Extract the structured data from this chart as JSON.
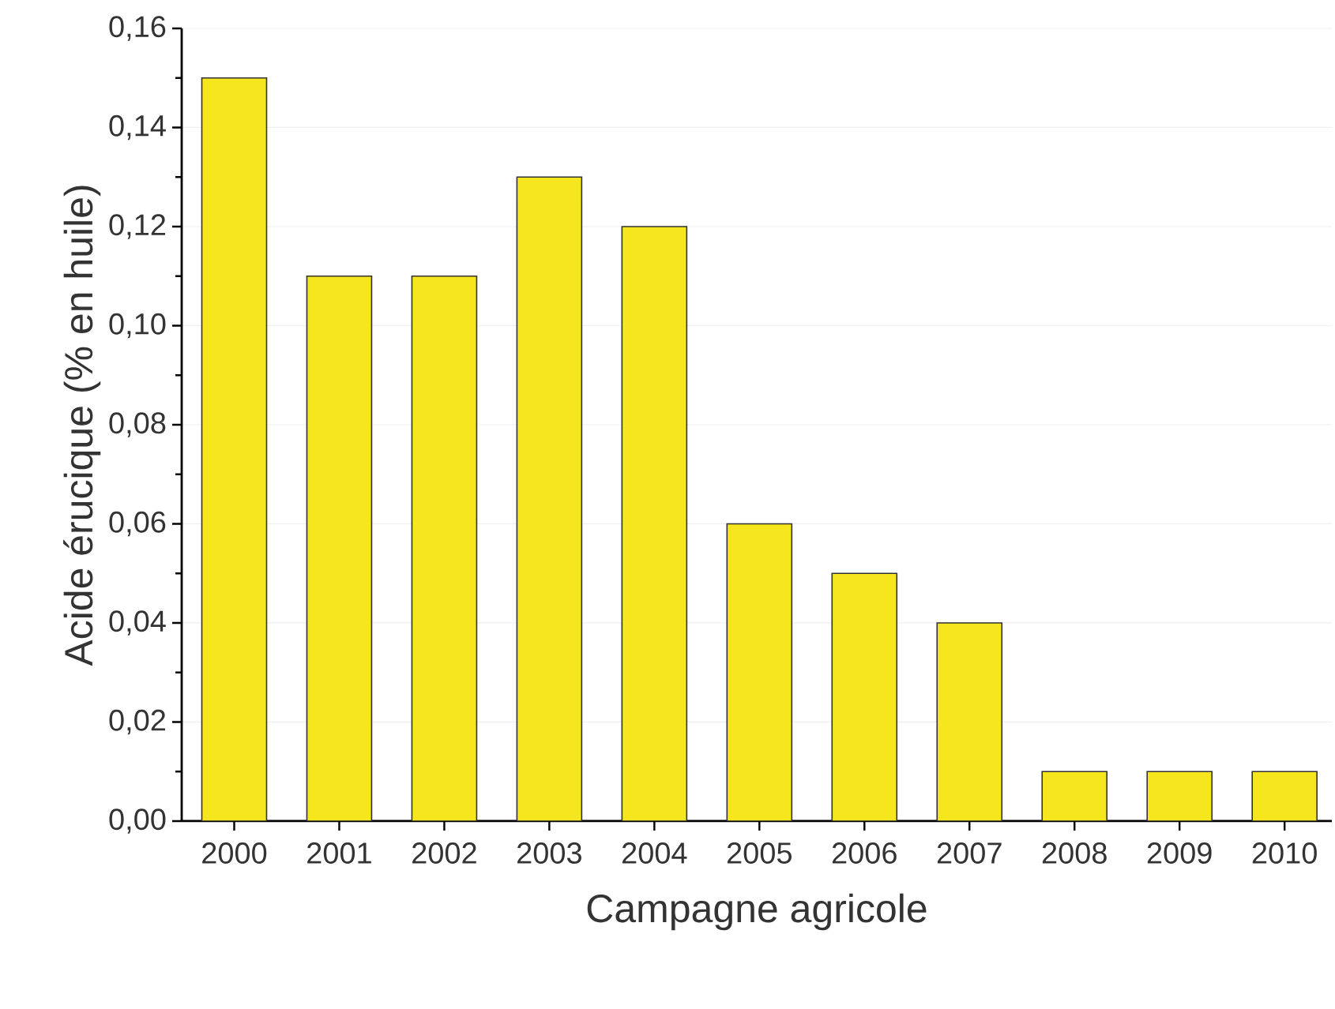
{
  "chart_data": {
    "type": "bar",
    "xlabel": "Campagne agricole",
    "ylabel": "Acide érucique (% en huile)",
    "categories": [
      "2000",
      "2001",
      "2002",
      "2003",
      "2004",
      "2005",
      "2006",
      "2007",
      "2008",
      "2009",
      "2010"
    ],
    "values": [
      0.15,
      0.11,
      0.11,
      0.13,
      0.12,
      0.06,
      0.05,
      0.04,
      0.01,
      0.01,
      0.01
    ],
    "color": "#f5e61e",
    "ylim": [
      0,
      0.16
    ],
    "yticks": [
      {
        "value": 0,
        "label": "0,00"
      },
      {
        "value": 0.02,
        "label": "0,02"
      },
      {
        "value": 0.04,
        "label": "0,04"
      },
      {
        "value": 0.06,
        "label": "0,06"
      },
      {
        "value": 0.08,
        "label": "0,08"
      },
      {
        "value": 0.1,
        "label": "0,10"
      },
      {
        "value": 0.12,
        "label": "0,12"
      },
      {
        "value": 0.14,
        "label": "0,14"
      },
      {
        "value": 0.16,
        "label": "0,16"
      }
    ],
    "grid": "y"
  }
}
